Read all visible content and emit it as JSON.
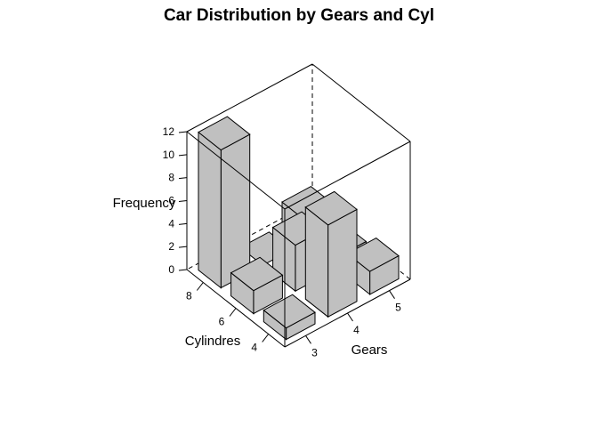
{
  "chart_data": {
    "type": "bar3d",
    "title": "Car Distribution by Gears and Cyl",
    "xlabel": "Gears",
    "ylabel": "Cylindres",
    "zlabel": "Frequency",
    "x_categories": [
      "3",
      "4",
      "5"
    ],
    "y_categories": [
      "4",
      "6",
      "8"
    ],
    "z_ticks": [
      "0",
      "2",
      "4",
      "6",
      "8",
      "10",
      "12"
    ],
    "zlim": [
      0,
      12
    ],
    "grid": false,
    "bar_color": "#c0c0c0",
    "bars": [
      {
        "gear": "3",
        "cyl": "4",
        "value": 1
      },
      {
        "gear": "3",
        "cyl": "6",
        "value": 2
      },
      {
        "gear": "3",
        "cyl": "8",
        "value": 12
      },
      {
        "gear": "4",
        "cyl": "4",
        "value": 8
      },
      {
        "gear": "4",
        "cyl": "6",
        "value": 4
      },
      {
        "gear": "4",
        "cyl": "8",
        "value": 0
      },
      {
        "gear": "5",
        "cyl": "4",
        "value": 2
      },
      {
        "gear": "5",
        "cyl": "6",
        "value": 1
      },
      {
        "gear": "5",
        "cyl": "8",
        "value": 2
      }
    ]
  }
}
